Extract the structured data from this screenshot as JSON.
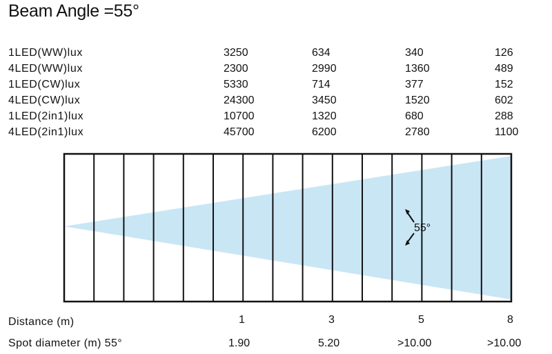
{
  "title": "Beam Angle =55°",
  "table": [
    {
      "label": "1LED(WW)lux",
      "values": [
        "3250",
        "634",
        "340",
        "126"
      ]
    },
    {
      "label": "4LED(WW)lux",
      "values": [
        "2300",
        "2990",
        "1360",
        "489"
      ]
    },
    {
      "label": "1LED(CW)lux",
      "values": [
        "5330",
        "714",
        "377",
        "152"
      ]
    },
    {
      "label": "4LED(CW)lux",
      "values": [
        "24300",
        "3450",
        "1520",
        "602"
      ]
    },
    {
      "label": "1LED(2in1)lux",
      "values": [
        "10700",
        "1320",
        "680",
        "288"
      ]
    },
    {
      "label": "4LED(2in1)lux",
      "values": [
        "45700",
        "6200",
        "2780",
        "1100"
      ]
    }
  ],
  "beam": {
    "angle_label": "55°",
    "fill_color": "#c9e6f5",
    "grid_divisions": 15
  },
  "distance": {
    "label": "Distance (m)",
    "values": [
      "1",
      "3",
      "5",
      "8"
    ]
  },
  "spot": {
    "label": "Spot diameter (m) 55°",
    "values": [
      "1.90",
      "5.20",
      ">10.00",
      ">10.00"
    ]
  }
}
